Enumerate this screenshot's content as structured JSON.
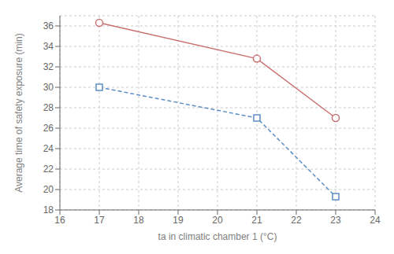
{
  "chart_data": {
    "type": "line",
    "x": [
      17,
      21,
      23
    ],
    "series": [
      {
        "color": "#c97070",
        "values": [
          36.3,
          32.8,
          27.0
        ],
        "marker": "circle",
        "line_style": "solid"
      },
      {
        "color": "#5b8fc4",
        "values": [
          30.0,
          27.0,
          19.3
        ],
        "marker": "square",
        "line_style": "dashed"
      }
    ],
    "xlabel": "ta in climatic chamber 1 (°C)",
    "ylabel": "Average time of safety exposure (min)",
    "xlim": [
      16,
      24
    ],
    "ylim": [
      18,
      37
    ],
    "xticks": [
      16,
      17,
      18,
      19,
      20,
      21,
      22,
      23,
      24
    ],
    "yticks": [
      18,
      20,
      22,
      24,
      26,
      28,
      30,
      32,
      34,
      36
    ],
    "grid": true
  }
}
